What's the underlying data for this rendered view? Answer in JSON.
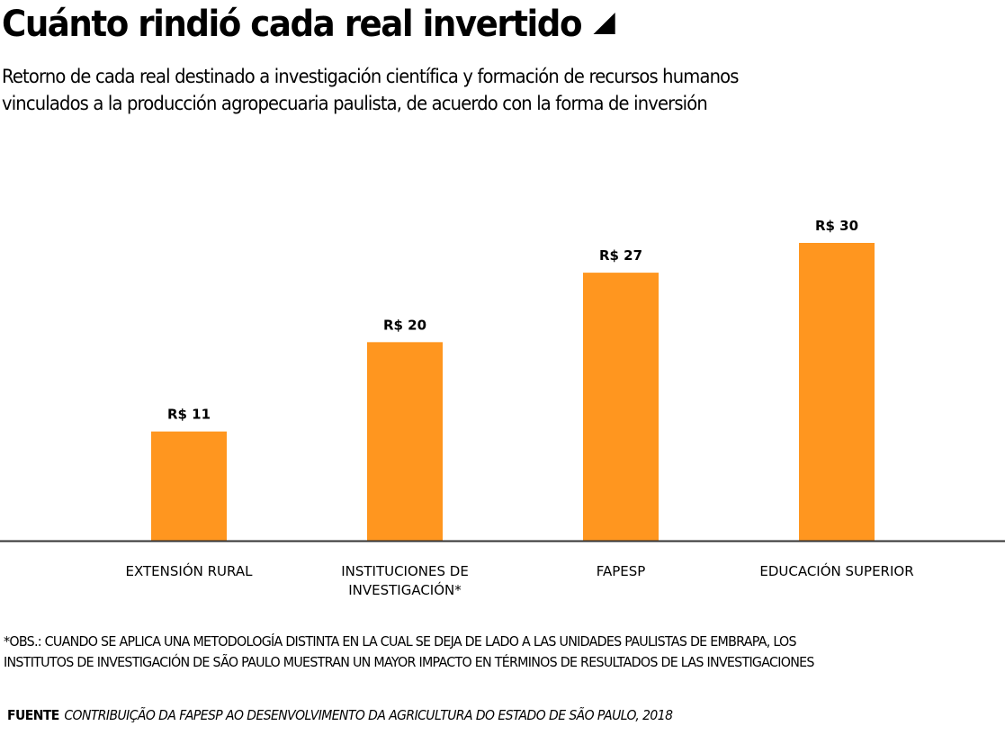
{
  "header": {
    "title": "Cuánto rindió cada real invertido",
    "subtitle_line1": "Retorno de cada real destinado a investigación científica y formación de recursos humanos",
    "subtitle_line2": "vinculados a la producción agropecuaria paulista, de acuerdo con la forma de inversión"
  },
  "chart_data": {
    "type": "bar",
    "title": "Cuánto rindió cada real invertido",
    "xlabel": "",
    "ylabel": "",
    "ylim": [
      0,
      30
    ],
    "grid": false,
    "categories": [
      [
        "EXTENSIÓN RURAL"
      ],
      [
        "INSTITUCIONES DE",
        "INVESTIGACIÓN*"
      ],
      [
        "FAPESP"
      ],
      [
        "EDUCACIÓN SUPERIOR"
      ]
    ],
    "values": [
      11,
      20,
      27,
      30
    ],
    "value_labels": [
      "R$ 11",
      "R$ 20",
      "R$ 27",
      "R$ 30"
    ],
    "colors": {
      "bar": "#FF961F",
      "baseline": "#333333",
      "text": "#000000"
    }
  },
  "footer": {
    "note_line1": "*OBS.: CUANDO SE APLICA UNA METODOLOGÍA DISTINTA EN LA CUAL SE DEJA DE LADO A LAS UNIDADES PAULISTAS DE EMBRAPA, LOS",
    "note_line2": "INSTITUTOS DE INVESTIGACIÓN DE SÃO PAULO MUESTRAN UN MAYOR IMPACTO EN TÉRMINOS DE RESULTADOS DE LAS INVESTIGACIONES",
    "source_label": "FUENTE",
    "source_text": "CONTRIBUIÇÃO DA FAPESP AO DESENVOLVIMENTO DA AGRICULTURA DO ESTADO DE SÃO PAULO, 2018"
  }
}
